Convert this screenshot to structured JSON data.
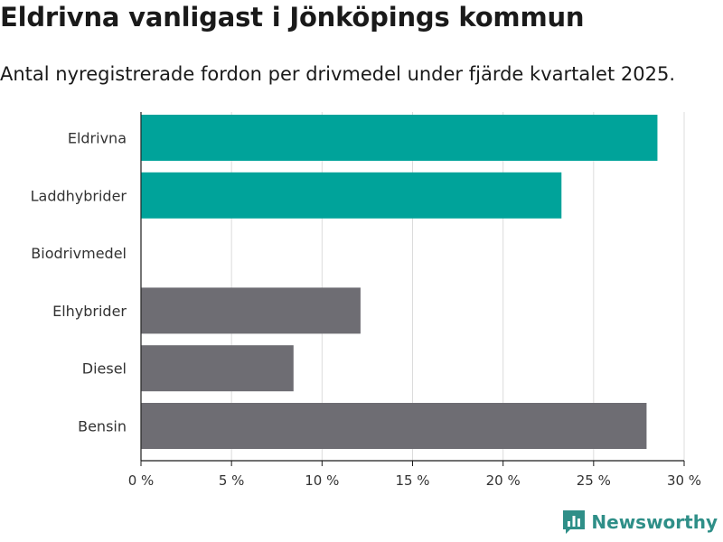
{
  "chart_data": {
    "type": "bar",
    "orientation": "horizontal",
    "title": "Eldrivna vanligast i Jönköpings kommun",
    "subtitle": "Antal nyregistrerade fordon per drivmedel under fjärde kvartalet 2025.",
    "categories": [
      "Eldrivna",
      "Laddhybrider",
      "Biodrivmedel",
      "Elhybrider",
      "Diesel",
      "Bensin"
    ],
    "values": [
      28.5,
      23.2,
      0,
      12.1,
      8.4,
      27.9
    ],
    "bar_colors": [
      "#00a39a",
      "#00a39a",
      "#6e6d73",
      "#6e6d73",
      "#6e6d73",
      "#6e6d73"
    ],
    "xlim": [
      0,
      30
    ],
    "xticks": [
      0,
      5,
      10,
      15,
      20,
      25,
      30
    ],
    "xtick_labels": [
      "0 %",
      "5 %",
      "10 %",
      "15 %",
      "20 %",
      "25 %",
      "30 %"
    ],
    "xlabel": "",
    "ylabel": "",
    "grid": true,
    "legend": "none"
  },
  "branding": {
    "name": "Newsworthy",
    "icon": "newsworthy-logo-icon",
    "color": "#2f8f88"
  }
}
